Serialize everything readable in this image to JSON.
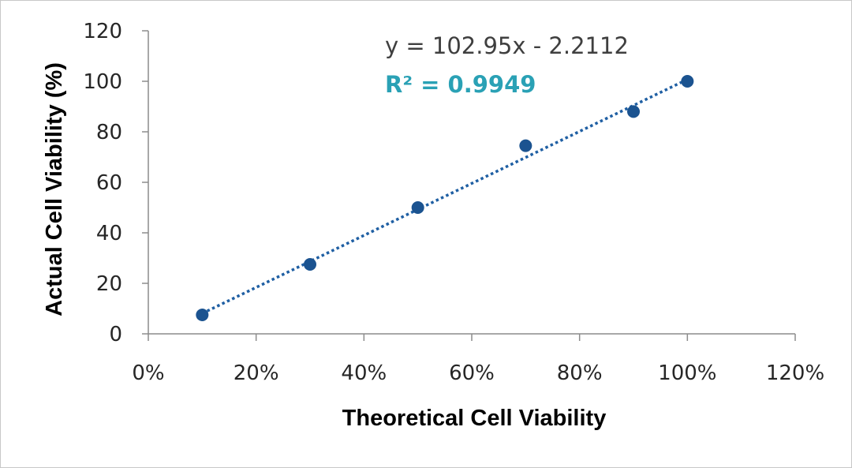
{
  "chart_data": {
    "type": "scatter",
    "title": "",
    "xlabel": "Theoretical Cell Viability",
    "ylabel": "Actual Cell Viability (%)",
    "xlim": [
      0,
      1.2
    ],
    "ylim": [
      0,
      120
    ],
    "x_ticks": [
      "0%",
      "20%",
      "40%",
      "60%",
      "80%",
      "100%",
      "120%"
    ],
    "y_ticks": [
      "0",
      "20",
      "40",
      "60",
      "80",
      "100",
      "120"
    ],
    "grid": false,
    "legend": "none",
    "series": [
      {
        "x": [
          0.1,
          0.3,
          0.5,
          0.7,
          0.9,
          1.0
        ],
        "y": [
          7.5,
          27.5,
          50,
          74.5,
          88,
          100
        ]
      }
    ],
    "trendline": {
      "type": "linear",
      "dashed": true,
      "slope": 102.95,
      "intercept": -2.2112,
      "x_range": [
        0.1,
        1.0
      ],
      "equation": "y = 102.95x - 2.2112",
      "r_squared": "R² = 0.9949"
    },
    "colors": {
      "marker": "#1b5390",
      "trendline": "#1f5fa3",
      "r_squared": "#2aa1b5",
      "axis": "#8c8c8c"
    }
  }
}
